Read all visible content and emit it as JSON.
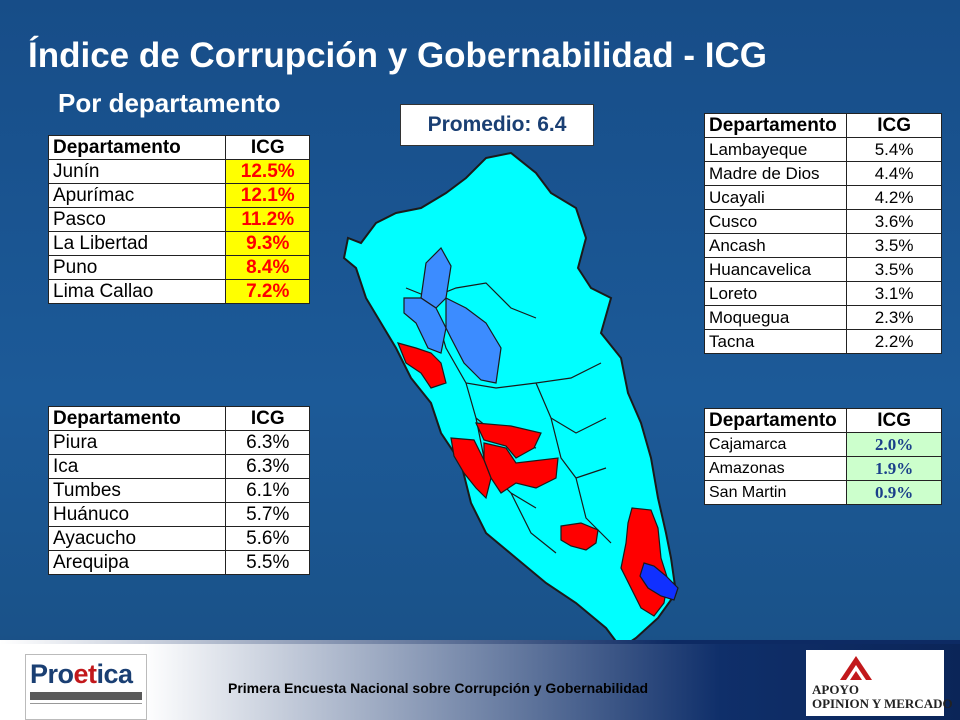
{
  "title": "Índice de Corrupción y Gobernabilidad - ICG",
  "subtitle": "Por departamento",
  "average_label": "Promedio: 6.4",
  "tables": {
    "top_left": {
      "headers": [
        "Departamento",
        "ICG"
      ],
      "rows": [
        [
          "Junín",
          "12.5%"
        ],
        [
          "Apurímac",
          "12.1%"
        ],
        [
          "Pasco",
          "11.2%"
        ],
        [
          "La Libertad",
          "9.3%"
        ],
        [
          "Puno",
          "8.4%"
        ],
        [
          "Lima Callao",
          "7.2%"
        ]
      ]
    },
    "bottom_left": {
      "headers": [
        "Departamento",
        "ICG"
      ],
      "rows": [
        [
          "Piura",
          "6.3%"
        ],
        [
          "Ica",
          "6.3%"
        ],
        [
          "Tumbes",
          "6.1%"
        ],
        [
          "Huánuco",
          "5.7%"
        ],
        [
          "Ayacucho",
          "5.6%"
        ],
        [
          "Arequipa",
          "5.5%"
        ]
      ]
    },
    "top_right": {
      "headers": [
        "Departamento",
        "ICG"
      ],
      "rows": [
        [
          "Lambayeque",
          "5.4%"
        ],
        [
          "Madre de Dios",
          "4.4%"
        ],
        [
          "Ucayali",
          "4.2%"
        ],
        [
          "Cusco",
          "3.6%"
        ],
        [
          "Ancash",
          "3.5%"
        ],
        [
          "Huancavelica",
          "3.5%"
        ],
        [
          "Loreto",
          "3.1%"
        ],
        [
          "Moquegua",
          "2.3%"
        ],
        [
          "Tacna",
          "2.2%"
        ]
      ]
    },
    "bottom_right": {
      "headers": [
        "Departamento",
        "ICG"
      ],
      "rows": [
        [
          "Cajamarca",
          "2.0%"
        ],
        [
          "Amazonas",
          "1.9%"
        ],
        [
          "San Martin",
          "0.9%"
        ]
      ]
    }
  },
  "map_colors": {
    "default": "#00ffff",
    "high": "#ff0000",
    "low": "#3c8cff",
    "lowest": "#1030ff",
    "border": "#1a1a1a"
  },
  "footer": {
    "text": "Primera Encuesta Nacional sobre Corrupción y Gobernabilidad",
    "logo_left": "Proetica",
    "logo_right_line1": "APOYO",
    "logo_right_line2": "OPINION Y MERCADO"
  }
}
